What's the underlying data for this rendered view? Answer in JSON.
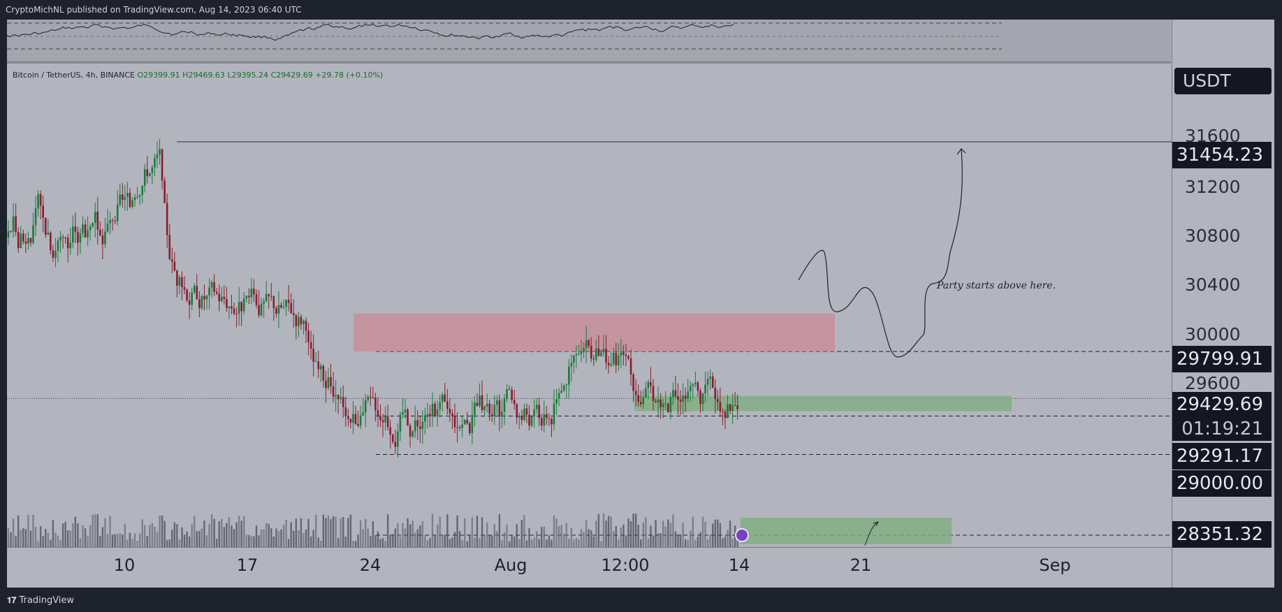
{
  "header": {
    "publish_text": "CryptoMichNL published on TradingView.com, Aug 14, 2023 06:40 UTC"
  },
  "footer": {
    "logo_mark": "𝟏𝟕",
    "brand": "TradingView"
  },
  "legend": {
    "symbol": "Bitcoin / TetherUS, 4h, BINANCE",
    "open": "O29399.91",
    "high": "H29469.63",
    "low": "L29395.24",
    "close": "C29429.69",
    "change": "+29.78 (+0.10%)"
  },
  "currency": "USDT",
  "price_badges": {
    "resistance_line": "31454.23",
    "zone_top": "29799.91",
    "last_price": "29429.69",
    "countdown": "01:19:21",
    "support": "29291.17",
    "round": "29000.00",
    "low_zone": "28351.32"
  },
  "annotation": "Party starts above here.",
  "colors": {
    "up": "#1b7a3c",
    "down": "#8a1c2c",
    "supply_zone": "#c98a96",
    "demand_zone": "#7fae7f",
    "background": "#b2b5be"
  },
  "chart_data": {
    "type": "candlestick",
    "symbol": "BTCUSDT",
    "interval": "4h",
    "exchange": "BINANCE",
    "y_ticks": [
      31600,
      31200,
      30800,
      30400,
      30000,
      29600
    ],
    "x_ticks": [
      "10",
      "17",
      "24",
      "Aug",
      "12:00",
      "14",
      "21",
      "Sep"
    ],
    "ylim": [
      28351,
      32000
    ],
    "last": {
      "open": 29399.91,
      "high": 29469.63,
      "low": 29395.24,
      "close": 29429.69,
      "change": 29.78,
      "change_pct": 0.1
    },
    "horizontal_levels": [
      31454.23,
      29799.91,
      29291.17,
      29000.0,
      28351.32
    ],
    "zones": [
      {
        "kind": "supply",
        "from": 29799.91,
        "to": 30100
      },
      {
        "kind": "demand",
        "from": 29291.17,
        "to": 29450
      },
      {
        "kind": "demand",
        "from": 28351.32,
        "to": 28600
      }
    ]
  }
}
